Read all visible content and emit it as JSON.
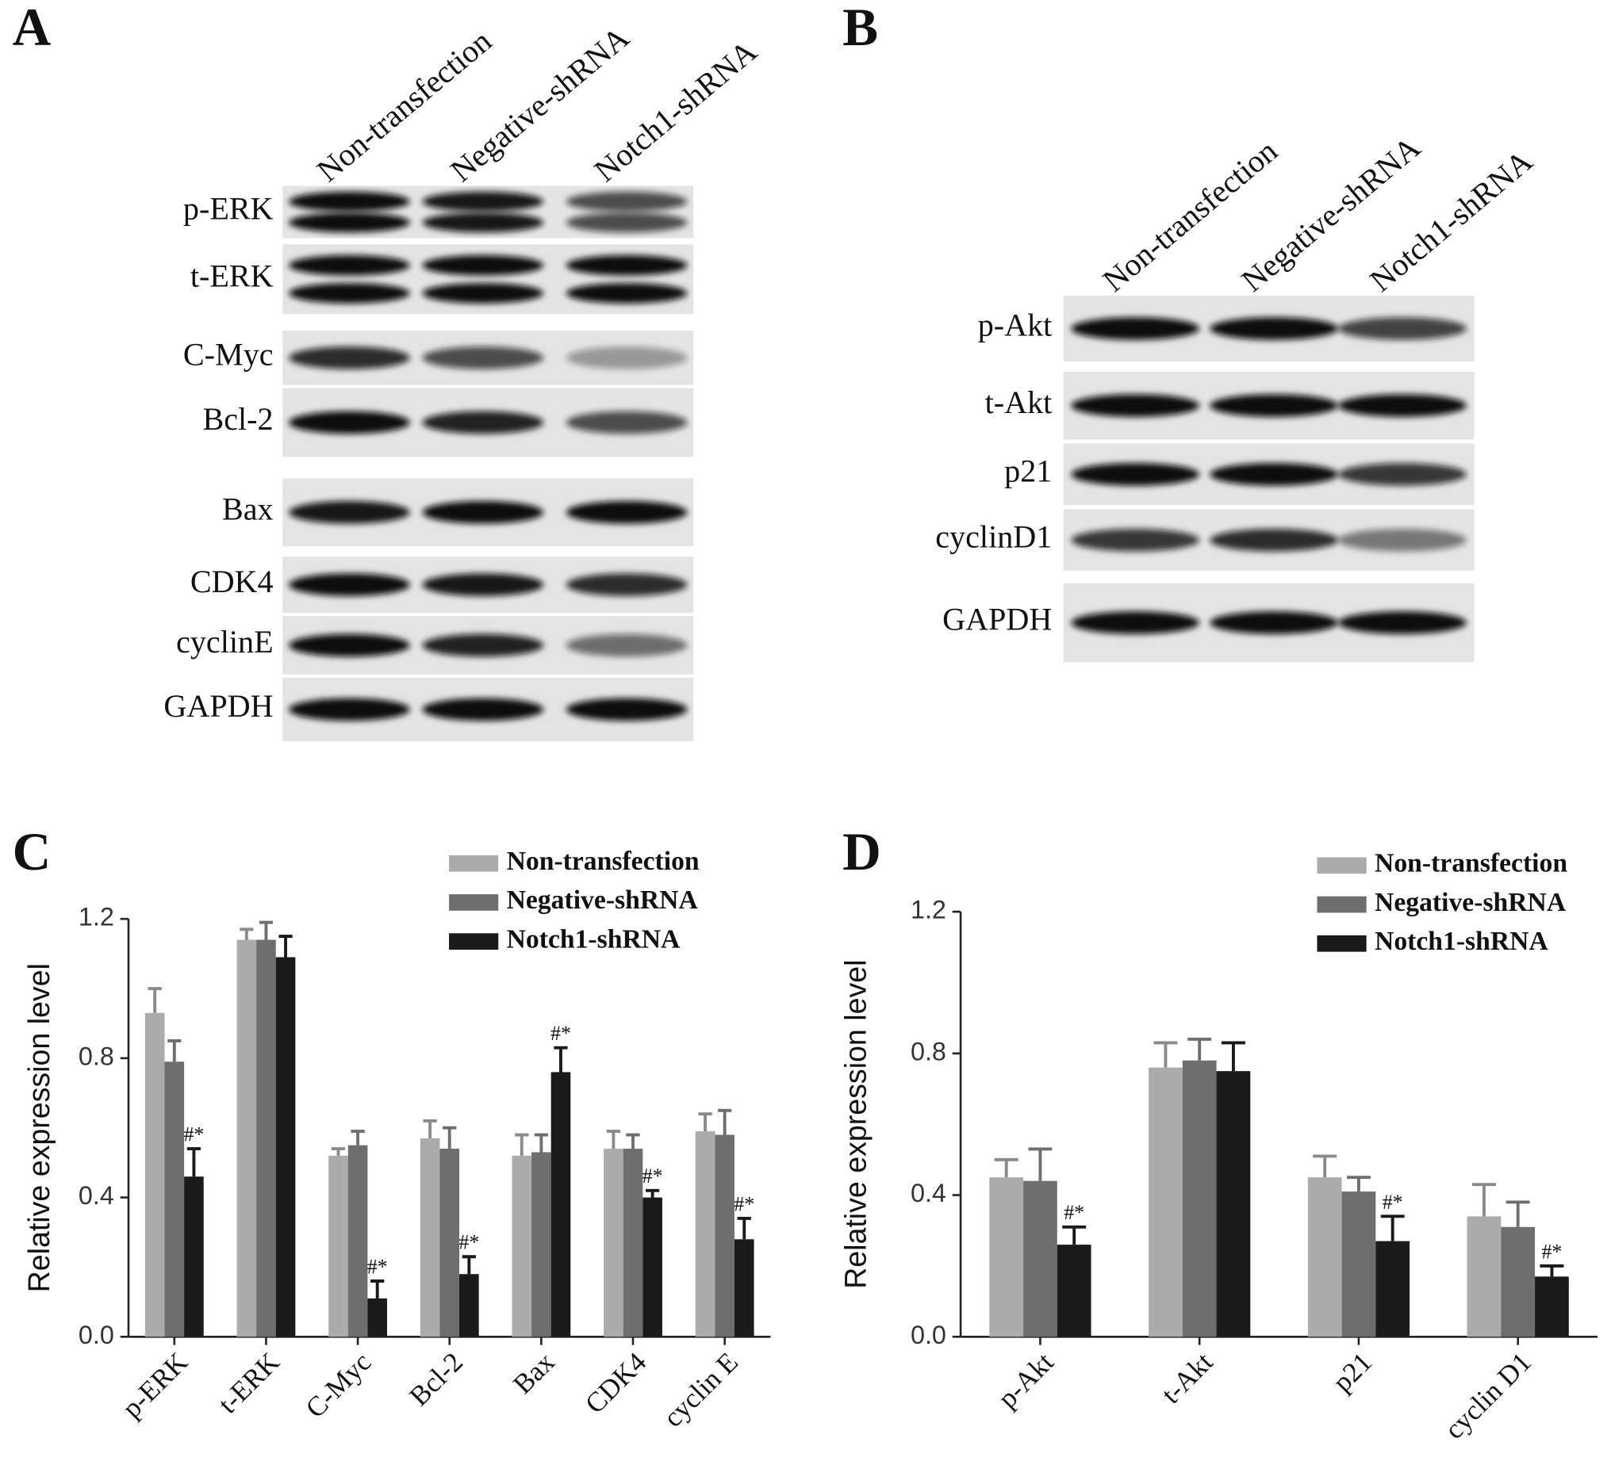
{
  "blots": [
    {
      "label": "A",
      "lanes": [
        "Non-transfection",
        "Negative-shRNA",
        "Notch1-shRNA"
      ],
      "proteins": [
        "p-ERK",
        "t-ERK",
        "C-Myc",
        "Bcl-2",
        "Bax",
        "CDK4",
        "cyclinE",
        "GAPDH"
      ]
    },
    {
      "label": "B",
      "lanes": [
        "Non-transfection",
        "Negative-shRNA",
        "Notch1-shRNA"
      ],
      "proteins": [
        "p-Akt",
        "t-Akt",
        "p21",
        "cyclinD1",
        "GAPDH"
      ]
    }
  ],
  "chart_data": [
    {
      "type": "bar",
      "panel": "C",
      "y_label": "Relative expression level",
      "categories": [
        "p-ERK",
        "t-ERK",
        "C-Myc",
        "Bcl-2",
        "Bax",
        "CDK4",
        "cyclin E"
      ],
      "series": [
        {
          "name": "Non-transfection",
          "color": "#ababab",
          "values": [
            0.93,
            1.14,
            0.52,
            0.57,
            0.52,
            0.54,
            0.59
          ],
          "errors": [
            0.07,
            0.03,
            0.02,
            0.05,
            0.06,
            0.05,
            0.05
          ]
        },
        {
          "name": "Negative-shRNA",
          "color": "#6e6e6e",
          "values": [
            0.79,
            1.14,
            0.55,
            0.54,
            0.53,
            0.54,
            0.58
          ],
          "errors": [
            0.06,
            0.05,
            0.04,
            0.06,
            0.05,
            0.04,
            0.07
          ]
        },
        {
          "name": "Notch1-shRNA",
          "color": "#1a1a1a",
          "values": [
            0.46,
            1.09,
            0.11,
            0.18,
            0.76,
            0.4,
            0.28
          ],
          "errors": [
            0.08,
            0.06,
            0.05,
            0.05,
            0.07,
            0.02,
            0.06
          ],
          "significance": [
            "#*",
            null,
            "#*",
            "#*",
            "#*",
            "#*",
            "#*"
          ]
        }
      ],
      "ylim": [
        0,
        1.2
      ],
      "yticks": [
        {
          "value": 0,
          "label": "0.0"
        },
        0.4,
        0.8,
        1.2
      ]
    },
    {
      "type": "bar",
      "panel": "D",
      "y_label": "Relative expression level",
      "categories": [
        "p-Akt",
        "t-Akt",
        "p21",
        "cyclin D1"
      ],
      "series": [
        {
          "name": "Non-transfection",
          "color": "#ababab",
          "values": [
            0.45,
            0.76,
            0.45,
            0.34
          ],
          "errors": [
            0.05,
            0.07,
            0.06,
            0.09
          ]
        },
        {
          "name": "Negative-shRNA",
          "color": "#6e6e6e",
          "values": [
            0.44,
            0.78,
            0.41,
            0.31
          ],
          "errors": [
            0.09,
            0.06,
            0.04,
            0.07
          ]
        },
        {
          "name": "Notch1-shRNA",
          "color": "#1a1a1a",
          "values": [
            0.26,
            0.75,
            0.27,
            0.17
          ],
          "errors": [
            0.05,
            0.08,
            0.07,
            0.03
          ],
          "significance": [
            "#*",
            null,
            "#*",
            "#*"
          ]
        }
      ],
      "ylim": [
        0,
        1.2
      ],
      "yticks": [
        {
          "value": 0,
          "label": "0.0"
        },
        0.4,
        0.8,
        1.2
      ]
    }
  ]
}
